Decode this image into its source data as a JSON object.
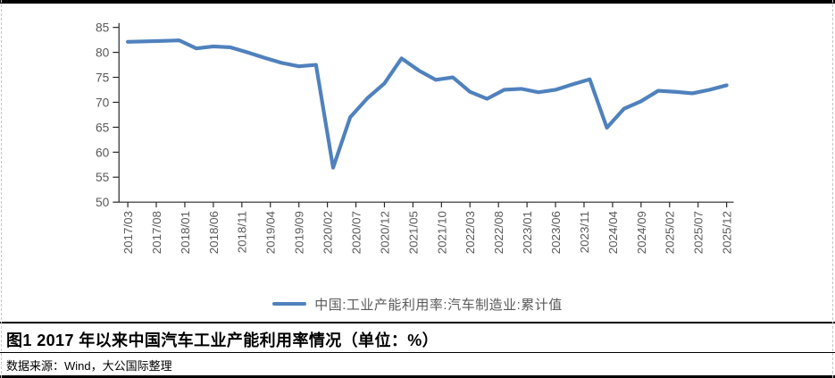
{
  "colors": {
    "series_line": "#4F81BD",
    "axis": "#262626",
    "tick_label": "#595959",
    "table_border": "#000000",
    "gridline_dash": "#C6C6C6"
  },
  "chart_data": {
    "type": "line",
    "title": "",
    "xlabel": "",
    "ylabel": "",
    "ylim": [
      50,
      85
    ],
    "y_ticks": [
      85,
      80,
      75,
      70,
      65,
      60,
      55,
      50
    ],
    "grid": false,
    "legend_position": "bottom-center",
    "x_tick_labels": [
      "2017/03",
      "2017/08",
      "2018/01",
      "2018/06",
      "2018/11",
      "2019/04",
      "2019/09",
      "2020/02",
      "2020/07",
      "2020/12",
      "2021/05",
      "2021/10",
      "2022/03",
      "2022/08",
      "2023/01",
      "2023/06",
      "2023/11",
      "2024/04",
      "2024/09",
      "2025/02",
      "2025/07",
      "2025/12"
    ],
    "series": [
      {
        "name": "中国:工业产能利用率:汽车制造业:累计值",
        "color": "#4F81BD",
        "x": [
          "2017/03",
          "2017/06",
          "2017/09",
          "2017/12",
          "2018/03",
          "2018/06",
          "2018/09",
          "2018/12",
          "2019/03",
          "2019/06",
          "2019/09",
          "2019/12",
          "2020/03",
          "2020/06",
          "2020/09",
          "2020/12",
          "2021/03",
          "2021/06",
          "2021/09",
          "2021/12",
          "2022/03",
          "2022/06",
          "2022/09",
          "2022/12",
          "2023/03",
          "2023/06",
          "2023/09",
          "2023/12",
          "2024/03",
          "2024/06",
          "2024/09",
          "2024/12",
          "2025/03",
          "2025/06",
          "2025/09",
          "2025/12"
        ],
        "values": [
          82.1,
          82.2,
          82.3,
          82.4,
          80.8,
          81.2,
          81.0,
          80.0,
          78.9,
          77.9,
          77.2,
          77.5,
          56.9,
          67.0,
          70.8,
          73.8,
          78.8,
          76.4,
          74.5,
          75.0,
          72.1,
          70.7,
          72.5,
          72.7,
          72.0,
          72.5,
          73.6,
          74.6,
          64.9,
          68.7,
          70.2,
          72.3,
          72.1,
          71.8,
          72.5,
          73.4
        ]
      }
    ]
  },
  "legend": {
    "label": "中国:工业产能利用率:汽车制造业:累计值"
  },
  "caption": {
    "text": "图1 2017 年以来中国汽车工业产能利用率情况（单位：%）"
  },
  "source": {
    "text": "数据来源：Wind，大公国际整理"
  }
}
